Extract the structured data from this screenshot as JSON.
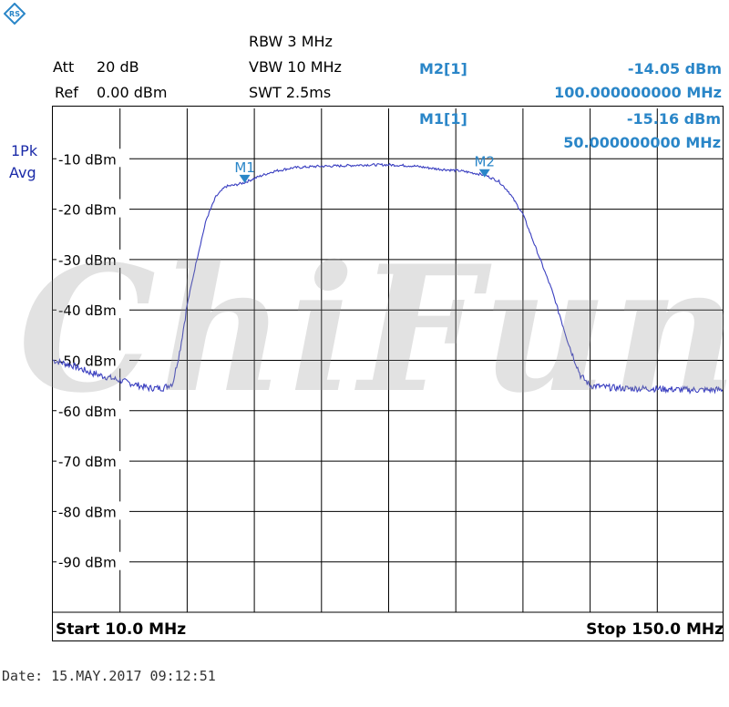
{
  "header": {
    "att_label": "Att",
    "att_value": "20 dB",
    "ref_label": "Ref",
    "ref_value": "0.00 dBm",
    "rbw": "RBW 3 MHz",
    "vbw": "VBW 10 MHz",
    "swt": "SWT 2.5ms"
  },
  "markers": [
    {
      "label": "M2[1]",
      "level": "-14.05 dBm",
      "freq": "100.000000000 MHz"
    },
    {
      "label": "M1[1]",
      "level": "-15.16 dBm",
      "freq": "50.000000000 MHz"
    }
  ],
  "side": {
    "trace_mode_1": "1Pk",
    "trace_mode_2": "Avg"
  },
  "footer": {
    "start": "Start 10.0 MHz",
    "stop": "Stop 150.0 MHz"
  },
  "date": "Date: 15.MAY.2017  09:12:51",
  "watermark": "ChiFun",
  "colors": {
    "trace": "#3a3fc0",
    "marker": "#2a86c8",
    "grid": "#000000"
  },
  "chart_data": {
    "type": "line",
    "xlabel": "",
    "ylabel": "",
    "xlim": [
      10,
      150
    ],
    "ylim": [
      -100,
      0
    ],
    "x_unit": "MHz",
    "y_ticks": [
      {
        "value": -10,
        "label": "-10 dBm"
      },
      {
        "value": -20,
        "label": "-20 dBm"
      },
      {
        "value": -30,
        "label": "-30 dBm"
      },
      {
        "value": -40,
        "label": "-40 dBm"
      },
      {
        "value": -50,
        "label": "-50 dBm"
      },
      {
        "value": -60,
        "label": "-60 dBm"
      },
      {
        "value": -70,
        "label": "-70 dBm"
      },
      {
        "value": -80,
        "label": "-80 dBm"
      },
      {
        "value": -90,
        "label": "-90 dBm"
      }
    ],
    "grid": true,
    "series": [
      {
        "x": [
          10,
          14,
          18,
          22,
          26,
          30,
          33,
          35,
          36.5,
          38,
          40,
          42,
          44,
          46,
          48,
          50,
          53,
          56,
          60,
          65,
          70,
          75,
          80,
          85,
          90,
          95,
          100,
          103,
          105,
          108,
          110,
          112,
          114,
          116,
          118,
          120,
          122,
          124,
          126,
          130,
          135,
          140,
          145,
          150
        ],
        "y": [
          -50,
          -51,
          -52.5,
          -53.5,
          -54.5,
          -55.5,
          -55.5,
          -54.5,
          -48,
          -39,
          -30,
          -22,
          -17.5,
          -15.5,
          -15.2,
          -14.7,
          -13.5,
          -12.5,
          -11.8,
          -11.5,
          -11.4,
          -11.2,
          -11.2,
          -11.4,
          -12,
          -12.4,
          -13.2,
          -14.5,
          -16.5,
          -21,
          -26,
          -31,
          -36,
          -42,
          -48,
          -53,
          -55,
          -55.2,
          -55.4,
          -55.6,
          -55.6,
          -55.8,
          -55.9,
          -55.8
        ]
      }
    ],
    "markers": [
      {
        "name": "M1",
        "x": 50,
        "y": -15.16
      },
      {
        "name": "M2",
        "x": 100,
        "y": -14.05
      }
    ]
  }
}
